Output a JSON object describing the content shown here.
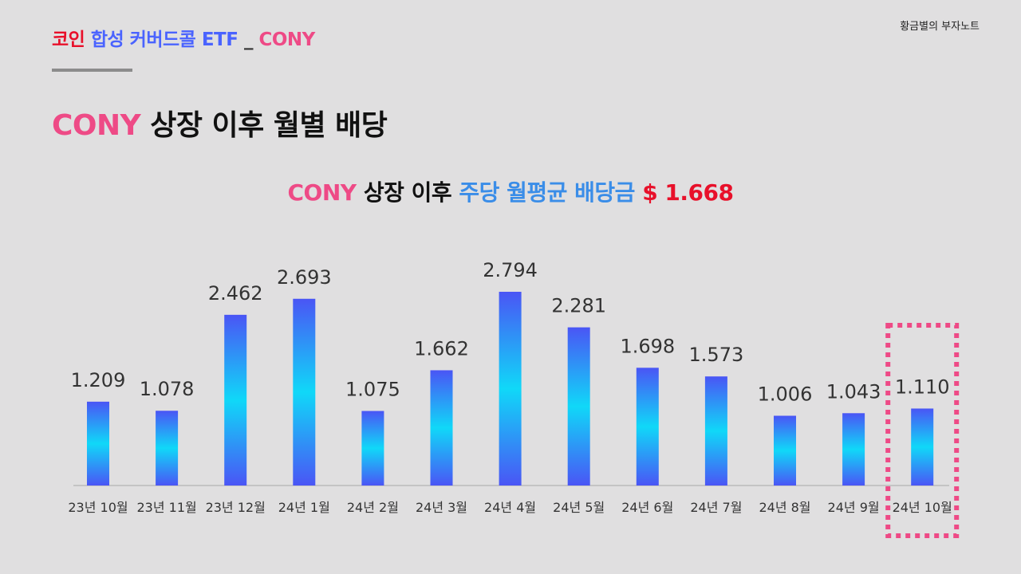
{
  "brand": "황금별의 부자노트",
  "header": {
    "part1": "코인",
    "part2": "합성 커버드콜 ETF",
    "sep": "_",
    "part3": "CONY"
  },
  "main_title": {
    "ticker": "CONY",
    "rest": "상장 이후 월별 배당"
  },
  "sub_title": {
    "ticker": "CONY",
    "mid": "상장 이후",
    "blue": "주당 월평균 배당금",
    "avg": "$ 1.668"
  },
  "colors": {
    "bar_edge": "#4a55f5",
    "bar_center": "#10d8f8",
    "highlight_box": "#ee4a86"
  },
  "chart_data": {
    "type": "bar",
    "categories": [
      "23년 10월",
      "23년 11월",
      "23년 12월",
      "24년 1월",
      "24년 2월",
      "24년 3월",
      "24년 4월",
      "24년 5월",
      "24년 6월",
      "24년 7월",
      "24년 8월",
      "24년 9월",
      "24년 10월"
    ],
    "values": [
      1.209,
      1.078,
      2.462,
      2.693,
      1.075,
      1.662,
      2.794,
      2.281,
      1.698,
      1.573,
      1.006,
      1.043,
      1.11
    ],
    "value_labels": [
      "1.209",
      "1.078",
      "2.462",
      "2.693",
      "1.075",
      "1.662",
      "2.794",
      "2.281",
      "1.698",
      "1.573",
      "1.006",
      "1.043",
      "1.110"
    ],
    "highlighted_category": "24년 10월",
    "ylim": [
      0,
      2.794
    ],
    "grid": false,
    "legend": false
  }
}
